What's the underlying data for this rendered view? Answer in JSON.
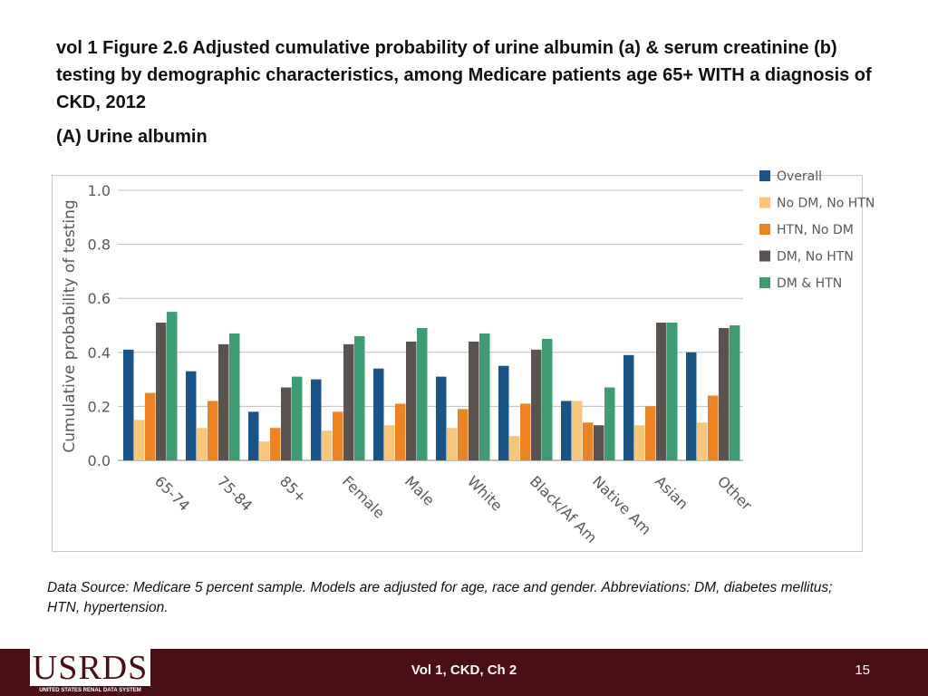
{
  "slide": {
    "title": "vol 1 Figure 2.6 Adjusted cumulative probability of urine albumin (a) & serum creatinine (b) testing by demographic characteristics, among Medicare patients age 65+ WITH a diagnosis of CKD, 2012",
    "subtitle": "(A) Urine albumin",
    "source_note": "Data Source: Medicare 5 percent sample. Models are adjusted for age, race and gender. Abbreviations: DM, diabetes mellitus; HTN, hypertension."
  },
  "footer": {
    "logo_text": "USRDS",
    "logo_subtext": "UNITED STATES RENAL DATA SYSTEM",
    "center_text": "Vol 1, CKD, Ch 2",
    "page_number": "15"
  },
  "colors": {
    "Overall": "#1a5487",
    "No DM, No HTN": "#f8c67a",
    "HTN, No DM": "#ec8424",
    "DM, No HTN": "#5b5350",
    "DM & HTN": "#3e9c72"
  },
  "chart_data": {
    "type": "bar",
    "title": "",
    "xlabel": "",
    "ylabel": "Cumulative probability of testing",
    "ylim": [
      0,
      1.0
    ],
    "yticks": [
      "0.0",
      "0.2",
      "0.4",
      "0.6",
      "0.8",
      "1.0"
    ],
    "grid": true,
    "legend_position": "right",
    "categories": [
      "65-74",
      "75-84",
      "85+",
      "Female",
      "Male",
      "White",
      "Black/Af Am",
      "Native Am",
      "Asian",
      "Other"
    ],
    "series": [
      {
        "name": "Overall",
        "values": [
          0.41,
          0.33,
          0.18,
          0.3,
          0.34,
          0.31,
          0.35,
          0.22,
          0.39,
          0.4
        ]
      },
      {
        "name": "No DM, No HTN",
        "values": [
          0.15,
          0.12,
          0.07,
          0.11,
          0.13,
          0.12,
          0.09,
          0.22,
          0.13,
          0.14
        ]
      },
      {
        "name": "HTN, No DM",
        "values": [
          0.25,
          0.22,
          0.12,
          0.18,
          0.21,
          0.19,
          0.21,
          0.14,
          0.2,
          0.24
        ]
      },
      {
        "name": "DM, No HTN",
        "values": [
          0.51,
          0.43,
          0.27,
          0.43,
          0.44,
          0.44,
          0.41,
          0.13,
          0.51,
          0.49
        ]
      },
      {
        "name": "DM & HTN",
        "values": [
          0.55,
          0.47,
          0.31,
          0.46,
          0.49,
          0.47,
          0.45,
          0.27,
          0.51,
          0.5
        ]
      }
    ]
  }
}
